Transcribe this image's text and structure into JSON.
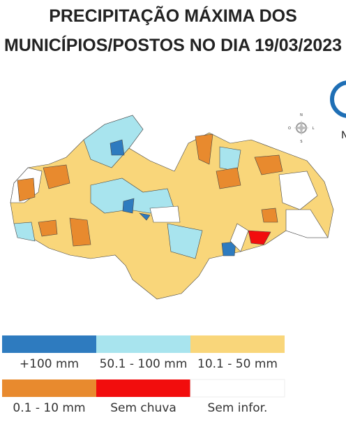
{
  "title": [
    "PRECIPITAÇÃO MÁXIMA DOS",
    "MUNICÍPIOS/POSTOS NO DIA 19/03/2023"
  ],
  "legend": [
    {
      "label": "+100 mm",
      "color": "#2e7bbf"
    },
    {
      "label": "50.1 - 100 mm",
      "color": "#a8e4ee"
    },
    {
      "label": "10.1 - 50 mm",
      "color": "#f9d67a"
    },
    {
      "label": "0.1 - 10 mm",
      "color": "#e88a2e"
    },
    {
      "label": "Sem chuva",
      "color": "#f20d0d"
    },
    {
      "label": "Sem infor.",
      "color": "#ffffff"
    }
  ],
  "compass": [
    "N",
    "S",
    "L",
    "O"
  ]
}
